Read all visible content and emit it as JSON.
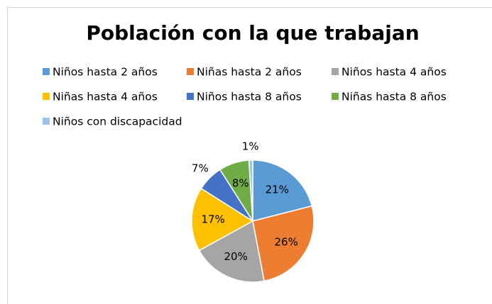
{
  "chart_data": {
    "type": "pie",
    "title": "Población con la que trabajan",
    "categories": [
      "Niños hasta 2 años",
      "Niñas hasta 2 años",
      "Niños hasta 4 años",
      "Niñas hasta 4 años",
      "Niños hasta 8 años",
      "Niñas hasta 8 años",
      "Niños con discapacidad"
    ],
    "values": [
      21,
      26,
      20,
      17,
      7,
      8,
      1
    ],
    "value_labels": [
      "21%",
      "26%",
      "20%",
      "17%",
      "7%",
      "8%",
      "1%"
    ],
    "colors": [
      "#5b9bd5",
      "#ed7d31",
      "#a5a5a5",
      "#ffc000",
      "#4472c4",
      "#70ad47",
      "#9dc3e6"
    ],
    "legend": "top"
  }
}
